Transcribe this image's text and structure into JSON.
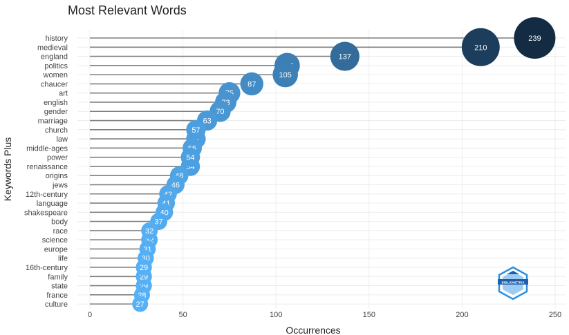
{
  "chart_data": {
    "type": "scatter",
    "title": "Most Relevant Words",
    "xlabel": "Occurrences",
    "ylabel": "Keywords Plus",
    "xlim": [
      -6,
      253
    ],
    "xticks": [
      0,
      50,
      100,
      150,
      200,
      250
    ],
    "grid": true,
    "categories": [
      "history",
      "medieval",
      "england",
      "politics",
      "women",
      "chaucer",
      "art",
      "english",
      "gender",
      "marriage",
      "church",
      "law",
      "middle-ages",
      "power",
      "renaissance",
      "origins",
      "jews",
      "12th-century",
      "language",
      "shakespeare",
      "body",
      "race",
      "science",
      "europe",
      "life",
      "16th-century",
      "family",
      "state",
      "france",
      "culture"
    ],
    "values": [
      239,
      210,
      137,
      106,
      105,
      87,
      75,
      73,
      70,
      63,
      57,
      57,
      55,
      54,
      54,
      48,
      46,
      42,
      41,
      40,
      37,
      32,
      32,
      31,
      30,
      29,
      29,
      29,
      28,
      27
    ],
    "color_scale": {
      "low": "#56b1f7",
      "high": "#132b43"
    },
    "stem_color": "#7f7f7f"
  },
  "logo": {
    "text": "BIBLIOMETRIX"
  }
}
